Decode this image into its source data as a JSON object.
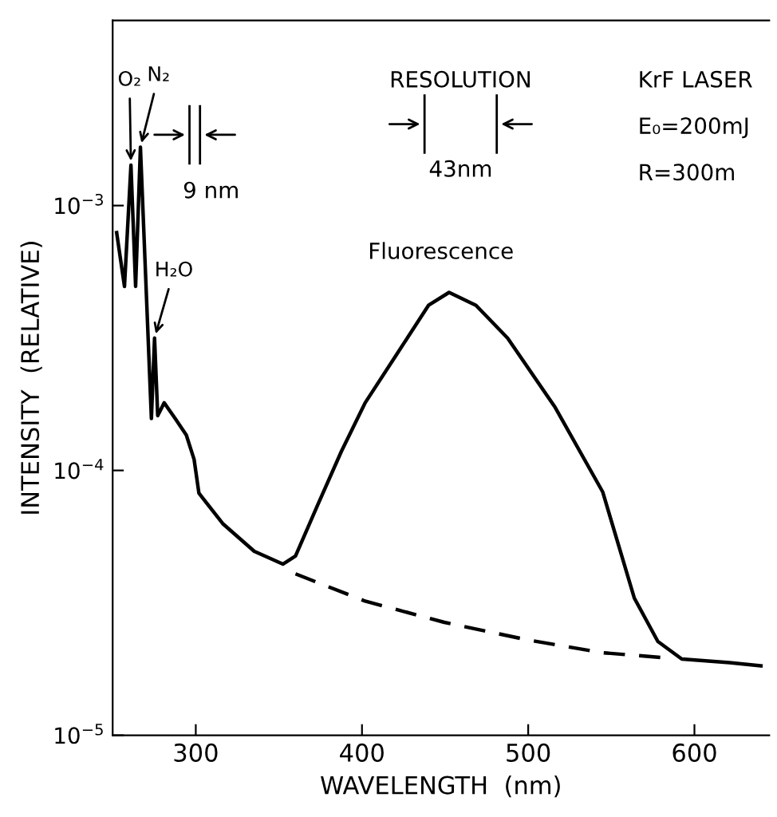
{
  "chart_data": {
    "type": "line",
    "xlabel": "WAVELENGTH  (nm)",
    "ylabel": "INTENSITY  (RELATIVE)",
    "log": "y",
    "xlim": [
      250,
      645
    ],
    "ylim": [
      1e-05,
      0.005
    ],
    "xticks": [
      300,
      400,
      500,
      600
    ],
    "yticks": [
      {
        "value": 1e-05,
        "label": "10$^{−5}$"
      },
      {
        "value": 0.0001,
        "label": "10$^{−4}$"
      },
      {
        "value": 0.001,
        "label": "10$^{−3}$"
      }
    ],
    "grid": false,
    "legend": false,
    "marker": "none",
    "series": [
      {
        "color": "#000000",
        "line_style": "solid",
        "x": [
          252.4,
          257.1,
          261,
          263.8,
          266.7,
          273.3,
          275.2,
          277.1,
          281,
          287.6,
          294.3,
          299,
          301.9,
          316.2,
          335.2,
          352.4,
          360,
          373.3,
          387.6,
          401.9,
          421,
          440,
          452.4,
          468.6,
          487.6,
          516.2,
          544.8,
          563.8,
          578,
          592.4,
          621,
          640
        ],
        "values": [
          0.00079,
          0.000495,
          0.00142,
          0.000495,
          0.00166,
          0.000157,
          0.000316,
          0.000161,
          0.00018,
          0.000157,
          0.000136,
          0.00011,
          8.2e-05,
          6.3e-05,
          4.95e-05,
          4.43e-05,
          4.75e-05,
          7.4e-05,
          0.000118,
          0.00018,
          0.000275,
          0.00042,
          0.00047,
          0.00042,
          0.000316,
          0.000173,
          8.3e-05,
          3.3e-05,
          2.26e-05,
          1.94e-05,
          1.88e-05,
          1.83e-05
        ]
      },
      {
        "color": "#000000",
        "line_style": "dashed",
        "x": [
          360,
          401.9,
          449.5,
          500,
          544.8,
          582.9
        ],
        "values": [
          4.07e-05,
          3.21e-05,
          2.67e-05,
          2.29e-05,
          2.05e-05,
          1.96e-05
        ]
      }
    ],
    "annotations": [
      {
        "text": "O₂",
        "x": 261,
        "y": 0.00142
      },
      {
        "text": "N₂",
        "x": 266.7,
        "y": 0.00166
      },
      {
        "text": "H₂O",
        "x": 275.2,
        "y": 0.000316
      },
      "9 nm",
      "RESOLUTION",
      "43nm",
      "KrF LASER",
      "E₀=200mJ",
      "R=300m",
      "Fluorescence"
    ]
  }
}
